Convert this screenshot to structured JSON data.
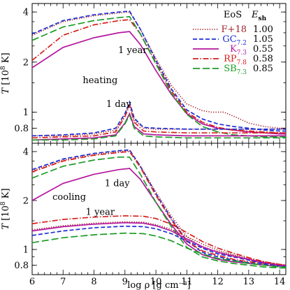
{
  "chart_data": [
    {
      "type": "line",
      "panel": "top",
      "xlabel": "",
      "ylabel": "T [10^8 K]",
      "xlim": [
        6,
        14.2
      ],
      "ylim": [
        0.65,
        4.5
      ],
      "yscale": "log",
      "grid": false,
      "xticks": [
        "6",
        "7",
        "8",
        "9",
        "10",
        "11",
        "12",
        "13",
        "14"
      ],
      "yticks": [
        {
          "value": 0.8,
          "label": "0.8"
        },
        {
          "value": 1,
          "label": "1"
        },
        {
          "value": 2,
          "label": "2"
        },
        {
          "value": 4,
          "label": "4"
        }
      ],
      "annotations": [
        {
          "text": "1 year",
          "x": 9.25,
          "y": 2.35
        },
        {
          "text": "heating",
          "x": 8.2,
          "y": 1.55
        },
        {
          "text": "1 day",
          "x": 8.8,
          "y": 1.12
        }
      ],
      "legend": {
        "placement": "top-right",
        "header_eos": "EoS",
        "header_esh": "E",
        "header_esh_sub": "sh",
        "entries": [
          {
            "name": "F+18",
            "sub": "",
            "esh": "1.00",
            "color": "#a0222a",
            "dash": "1.2,2.2"
          },
          {
            "name": "GC",
            "sub": "7.2",
            "esh": "1.05",
            "color": "#1d2fd6",
            "dash": "6,3"
          },
          {
            "name": "K",
            "sub": "7.3",
            "esh": "0.55",
            "color": "#b4179e",
            "dash": ""
          },
          {
            "name": "RP",
            "sub": "7.8",
            "esh": "0.58",
            "color": "#d5201d",
            "dash": "8,2.5,1.5,2.5"
          },
          {
            "name": "SB",
            "sub": "7.3",
            "esh": "0.85",
            "color": "#1c9c26",
            "dash": "10,4"
          }
        ]
      },
      "series": [
        {
          "style": 0,
          "label": "1 year",
          "x": [
            6,
            7,
            8,
            8.8,
            9.15,
            9.5,
            10,
            10.5,
            11,
            11.5,
            11.8,
            12.2,
            12.6,
            13,
            13.5,
            14,
            14.2
          ],
          "y": [
            2.9,
            3.5,
            3.8,
            3.95,
            4.0,
            3.15,
            2.1,
            1.45,
            1.12,
            1.02,
            1.0,
            1.0,
            0.93,
            0.86,
            0.82,
            0.8,
            0.8
          ]
        },
        {
          "style": 1,
          "label": "1 year",
          "x": [
            6,
            7,
            8,
            8.8,
            9.15,
            9.5,
            10,
            10.5,
            11,
            11.5,
            12,
            12.5,
            13,
            13.5,
            14,
            14.2
          ],
          "y": [
            2.95,
            3.55,
            3.85,
            4.0,
            4.05,
            3.15,
            2.05,
            1.38,
            1.03,
            0.91,
            0.85,
            0.82,
            0.8,
            0.78,
            0.77,
            0.77
          ]
        },
        {
          "style": 2,
          "label": "1 year",
          "x": [
            6,
            7,
            8,
            8.8,
            9.15,
            9.5,
            10,
            10.5,
            11,
            11.5,
            12,
            12.5,
            13,
            13.5,
            14,
            14.2
          ],
          "y": [
            1.85,
            2.45,
            2.8,
            3.0,
            3.05,
            2.55,
            1.78,
            1.28,
            0.98,
            0.85,
            0.8,
            0.78,
            0.76,
            0.75,
            0.74,
            0.74
          ]
        },
        {
          "style": 3,
          "label": "1 year",
          "x": [
            6,
            7,
            8,
            8.8,
            9.15,
            9.5,
            10,
            10.5,
            11,
            11.5,
            12,
            12.5,
            13,
            13.5,
            14,
            14.2
          ],
          "y": [
            2.05,
            2.9,
            3.35,
            3.55,
            3.6,
            2.95,
            1.98,
            1.34,
            1.0,
            0.87,
            0.81,
            0.78,
            0.77,
            0.76,
            0.75,
            0.75
          ]
        },
        {
          "style": 4,
          "label": "1 year",
          "x": [
            6,
            7,
            8,
            8.8,
            9.15,
            9.5,
            10,
            10.5,
            11,
            11.5,
            12,
            12.5,
            13,
            13.5,
            14,
            14.2
          ],
          "y": [
            2.7,
            3.25,
            3.55,
            3.7,
            3.75,
            2.95,
            1.95,
            1.3,
            0.97,
            0.82,
            0.76,
            0.73,
            0.72,
            0.71,
            0.71,
            0.71
          ]
        },
        {
          "style": 0,
          "label": "1 day",
          "x": [
            6,
            7,
            8,
            8.7,
            9.0,
            9.15,
            9.3,
            9.6,
            10,
            11,
            12,
            13,
            14,
            14.2
          ],
          "y": [
            0.72,
            0.72,
            0.74,
            0.78,
            0.96,
            1.12,
            0.9,
            0.8,
            0.79,
            0.79,
            0.79,
            0.79,
            0.79,
            0.79
          ]
        },
        {
          "style": 1,
          "label": "1 day",
          "x": [
            6,
            7,
            8,
            8.7,
            9.0,
            9.15,
            9.3,
            9.6,
            10,
            11,
            12,
            13,
            14,
            14.2
          ],
          "y": [
            0.72,
            0.73,
            0.75,
            0.8,
            0.98,
            1.15,
            0.92,
            0.81,
            0.8,
            0.79,
            0.79,
            0.79,
            0.79,
            0.79
          ]
        },
        {
          "style": 2,
          "label": "1 day",
          "x": [
            6,
            7,
            8,
            8.7,
            9.0,
            9.15,
            9.3,
            9.6,
            10,
            11,
            12,
            13,
            14,
            14.2
          ],
          "y": [
            0.68,
            0.69,
            0.7,
            0.73,
            0.86,
            0.98,
            0.82,
            0.74,
            0.73,
            0.72,
            0.72,
            0.72,
            0.72,
            0.72
          ]
        },
        {
          "style": 3,
          "label": "1 day",
          "x": [
            6,
            7,
            8,
            8.7,
            9.0,
            9.15,
            9.3,
            9.6,
            10,
            11,
            12,
            13,
            14,
            14.2
          ],
          "y": [
            0.7,
            0.71,
            0.72,
            0.76,
            0.94,
            1.1,
            0.87,
            0.77,
            0.76,
            0.75,
            0.75,
            0.75,
            0.75,
            0.75
          ]
        },
        {
          "style": 4,
          "label": "1 day",
          "x": [
            6,
            7,
            8,
            8.7,
            9.0,
            9.15,
            9.3,
            9.6,
            10,
            11,
            12,
            13,
            14,
            14.2
          ],
          "y": [
            0.68,
            0.68,
            0.69,
            0.72,
            0.85,
            0.96,
            0.8,
            0.72,
            0.71,
            0.7,
            0.7,
            0.7,
            0.7,
            0.7
          ]
        }
      ]
    },
    {
      "type": "line",
      "panel": "bottom",
      "xlabel": "log ρ [g cm⁻³]",
      "ylabel": "T [10^8 K]",
      "xlim": [
        6,
        14.2
      ],
      "ylim": [
        0.7,
        4.5
      ],
      "yscale": "log",
      "grid": false,
      "xticks": [
        "6",
        "7",
        "8",
        "9",
        "10",
        "11",
        "12",
        "13",
        "14"
      ],
      "yticks": [
        {
          "value": 0.8,
          "label": "0.8"
        },
        {
          "value": 1,
          "label": "1"
        },
        {
          "value": 2,
          "label": "2"
        },
        {
          "value": 4,
          "label": "4"
        }
      ],
      "annotations": [
        {
          "text": "1 day",
          "x": 8.75,
          "y": 2.55
        },
        {
          "text": "cooling",
          "x": 7.2,
          "y": 2.1
        },
        {
          "text": "1 year",
          "x": 8.2,
          "y": 1.7
        }
      ],
      "series": [
        {
          "style": 0,
          "label": "1 day",
          "x": [
            6,
            7,
            8,
            8.8,
            9.15,
            9.5,
            10,
            10.5,
            11,
            11.5,
            12,
            12.5,
            13,
            13.5,
            14,
            14.2
          ],
          "y": [
            3.05,
            3.55,
            3.85,
            4.0,
            4.05,
            3.25,
            2.25,
            1.6,
            1.2,
            1.02,
            0.97,
            0.92,
            0.86,
            0.83,
            0.8,
            0.8
          ]
        },
        {
          "style": 1,
          "label": "1 day",
          "x": [
            6,
            7,
            8,
            8.8,
            9.15,
            9.5,
            10,
            10.5,
            11,
            11.5,
            12,
            12.5,
            13,
            13.5,
            14,
            14.2
          ],
          "y": [
            3.1,
            3.6,
            3.9,
            4.05,
            4.1,
            3.25,
            2.2,
            1.55,
            1.13,
            0.96,
            0.9,
            0.86,
            0.83,
            0.81,
            0.79,
            0.79
          ]
        },
        {
          "style": 2,
          "label": "1 day",
          "x": [
            6,
            7,
            8,
            8.8,
            9.15,
            9.5,
            10,
            10.5,
            11,
            11.5,
            12,
            12.5,
            13,
            13.5,
            14,
            14.2
          ],
          "y": [
            2.0,
            2.55,
            2.9,
            3.1,
            3.15,
            2.7,
            1.95,
            1.42,
            1.08,
            0.93,
            0.87,
            0.84,
            0.82,
            0.8,
            0.79,
            0.79
          ]
        },
        {
          "style": 3,
          "label": "1 day",
          "x": [
            6,
            7,
            8,
            8.8,
            9.15,
            9.5,
            10,
            10.5,
            11,
            11.5,
            12,
            12.5,
            13,
            13.5,
            14,
            14.2
          ],
          "y": [
            3.0,
            3.5,
            3.8,
            3.95,
            4.0,
            3.2,
            2.15,
            1.52,
            1.12,
            0.98,
            0.92,
            0.87,
            0.84,
            0.82,
            0.8,
            0.8
          ]
        },
        {
          "style": 4,
          "label": "1 day",
          "x": [
            6,
            7,
            8,
            8.8,
            9.15,
            9.5,
            10,
            10.5,
            11,
            11.5,
            12,
            12.5,
            13,
            13.5,
            14,
            14.2
          ],
          "y": [
            2.75,
            3.25,
            3.55,
            3.7,
            3.7,
            2.9,
            1.95,
            1.38,
            1.03,
            0.9,
            0.85,
            0.82,
            0.8,
            0.78,
            0.77,
            0.77
          ]
        },
        {
          "style": 0,
          "label": "1 year",
          "x": [
            6,
            7,
            8,
            9,
            9.6,
            10,
            10.5,
            11,
            11.5,
            12,
            12.5,
            13,
            13.5,
            14,
            14.2
          ],
          "y": [
            1.32,
            1.4,
            1.45,
            1.48,
            1.47,
            1.42,
            1.33,
            1.2,
            1.08,
            0.99,
            0.93,
            0.88,
            0.84,
            0.81,
            0.8
          ]
        },
        {
          "style": 1,
          "label": "1 year",
          "x": [
            6,
            7,
            8,
            9,
            9.6,
            10,
            10.5,
            11,
            11.5,
            12,
            12.5,
            13,
            13.5,
            14,
            14.2
          ],
          "y": [
            1.22,
            1.3,
            1.36,
            1.39,
            1.38,
            1.34,
            1.25,
            1.13,
            1.02,
            0.94,
            0.9,
            0.86,
            0.82,
            0.79,
            0.79
          ]
        },
        {
          "style": 2,
          "label": "1 year",
          "x": [
            6,
            7,
            8,
            9,
            9.6,
            10,
            10.5,
            11,
            11.5,
            12,
            12.5,
            13,
            13.5,
            14,
            14.2
          ],
          "y": [
            1.3,
            1.38,
            1.43,
            1.46,
            1.45,
            1.4,
            1.3,
            1.16,
            1.04,
            0.96,
            0.91,
            0.87,
            0.83,
            0.8,
            0.8
          ]
        },
        {
          "style": 3,
          "label": "1 year",
          "x": [
            6,
            7,
            8,
            9,
            9.6,
            10,
            10.5,
            11,
            11.5,
            12,
            12.5,
            13,
            13.5,
            14,
            14.2
          ],
          "y": [
            1.44,
            1.53,
            1.58,
            1.61,
            1.6,
            1.55,
            1.43,
            1.27,
            1.12,
            1.02,
            0.95,
            0.89,
            0.84,
            0.81,
            0.8
          ]
        },
        {
          "style": 4,
          "label": "1 year",
          "x": [
            6,
            7,
            8,
            9,
            9.6,
            10,
            10.5,
            11,
            11.5,
            12,
            12.5,
            13,
            13.5,
            14,
            14.2
          ],
          "y": [
            1.1,
            1.18,
            1.23,
            1.26,
            1.25,
            1.21,
            1.13,
            1.02,
            0.94,
            0.88,
            0.85,
            0.82,
            0.8,
            0.78,
            0.78
          ]
        }
      ]
    }
  ]
}
